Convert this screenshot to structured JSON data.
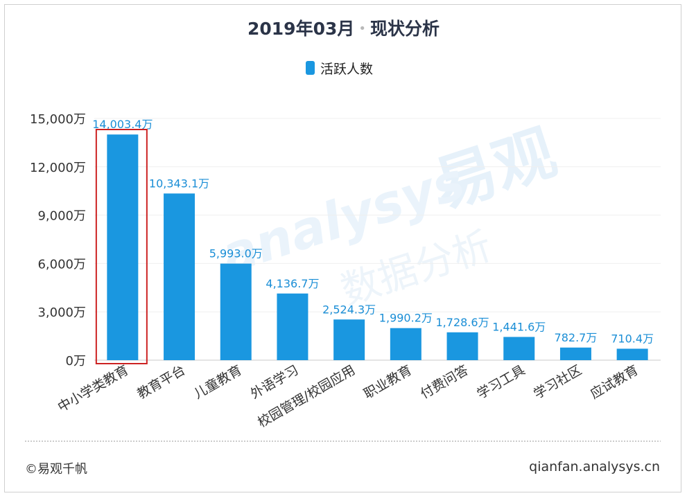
{
  "chart_data": {
    "type": "bar",
    "title_date": "2019年03月",
    "title_separator": "•",
    "title_topic": "现状分析",
    "legend_position": "top-center",
    "series": [
      {
        "name": "活跃人数",
        "color": "#1a97e0",
        "values": [
          14003.4,
          10343.1,
          5993.0,
          4136.7,
          2524.3,
          1990.2,
          1728.6,
          1441.6,
          782.7,
          710.4
        ],
        "data_labels": [
          "14,003.4万",
          "10,343.1万",
          "5,993.0万",
          "4,136.7万",
          "2,524.3万",
          "1,990.2万",
          "1,728.6万",
          "1,441.6万",
          "782.7万",
          "710.4万"
        ]
      }
    ],
    "categories": [
      "中小学类教育",
      "教育平台",
      "儿童教育",
      "外语学习",
      "校园管理/校园应用",
      "职业教育",
      "付费问答",
      "学习工具",
      "学习社区",
      "应试教育"
    ],
    "ylim": [
      0,
      15000
    ],
    "yticks": [
      0,
      3000,
      6000,
      9000,
      12000,
      15000
    ],
    "ytick_labels": [
      "0万",
      "3,000万",
      "6,000万",
      "9,000万",
      "12,000万",
      "15,000万"
    ],
    "grid": true,
    "highlight_category": "中小学类教育",
    "highlight_color": "#cc2222",
    "label_color": "#1a8ed6"
  },
  "watermark": {
    "brand_text": "易观",
    "latin_text": "analysys",
    "slogan_text": "数据分析"
  },
  "footer": {
    "copyright": "©易观千帆",
    "url": "qianfan.analysys.cn"
  }
}
